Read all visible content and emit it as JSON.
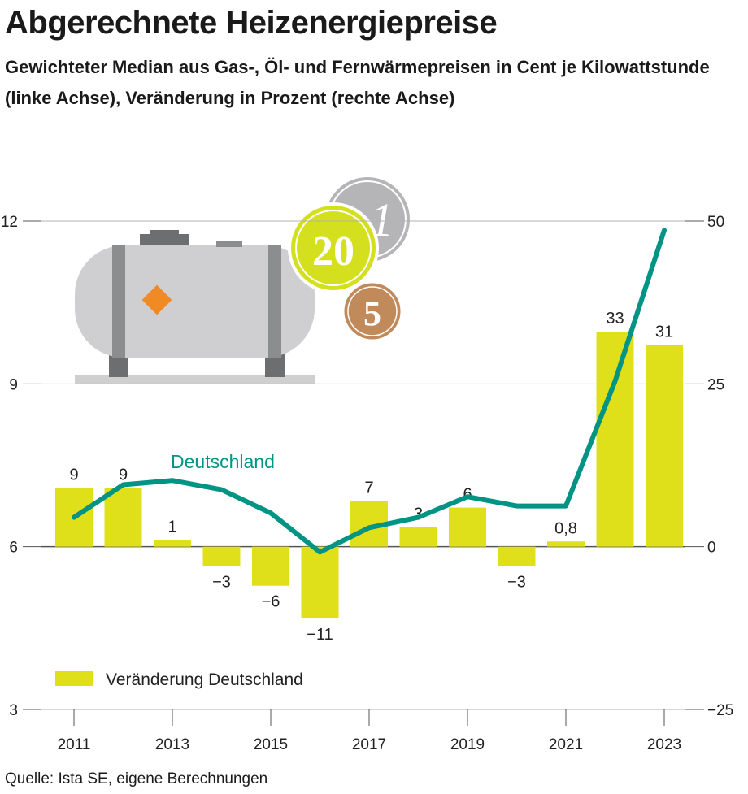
{
  "title": "Abgerechnete Heizenergiepreise",
  "subtitle": "Gewichteter Median aus Gas-, Öl- und Fernwärmepreisen in Cent je Kilowattstunde (linke Achse), Veränderung in Prozent (rechte Achse)",
  "source": "Quelle: Ista SE, eigene Berechnungen",
  "colors": {
    "bar": "#e0e01a",
    "line": "#009485",
    "grid": "#b3b3b3"
  },
  "chart_data": {
    "type": "bar+line",
    "x": [
      2011,
      2012,
      2013,
      2014,
      2015,
      2016,
      2017,
      2018,
      2019,
      2020,
      2021,
      2022,
      2023
    ],
    "x_tick_labels": [
      "2011",
      "2013",
      "2015",
      "2017",
      "2019",
      "2021",
      "2023"
    ],
    "left_axis": {
      "ylim": [
        3,
        12
      ],
      "ticks": [
        "3",
        "6",
        "9",
        "12"
      ]
    },
    "right_axis": {
      "ylim": [
        -25,
        50
      ],
      "ticks": [
        "−25",
        "0",
        "25",
        "50"
      ]
    },
    "series": [
      {
        "name": "Veränderung Deutschland",
        "type": "bar",
        "axis": "right",
        "values": [
          9,
          9,
          1,
          -3,
          -6,
          -11,
          7,
          3,
          6,
          -3,
          0.8,
          33,
          31
        ],
        "labels": [
          "9",
          "9",
          "1",
          "−3",
          "−6",
          "−11",
          "7",
          "3",
          "6",
          "−3",
          "0,8",
          "33",
          "31"
        ]
      },
      {
        "name": "Deutschland",
        "type": "line",
        "axis": "left",
        "values": [
          6.54,
          7.14,
          7.22,
          7.05,
          6.62,
          5.9,
          6.35,
          6.54,
          6.92,
          6.75,
          6.75,
          9.05,
          11.83
        ]
      }
    ],
    "legend": "bottom-left",
    "grid": true
  }
}
